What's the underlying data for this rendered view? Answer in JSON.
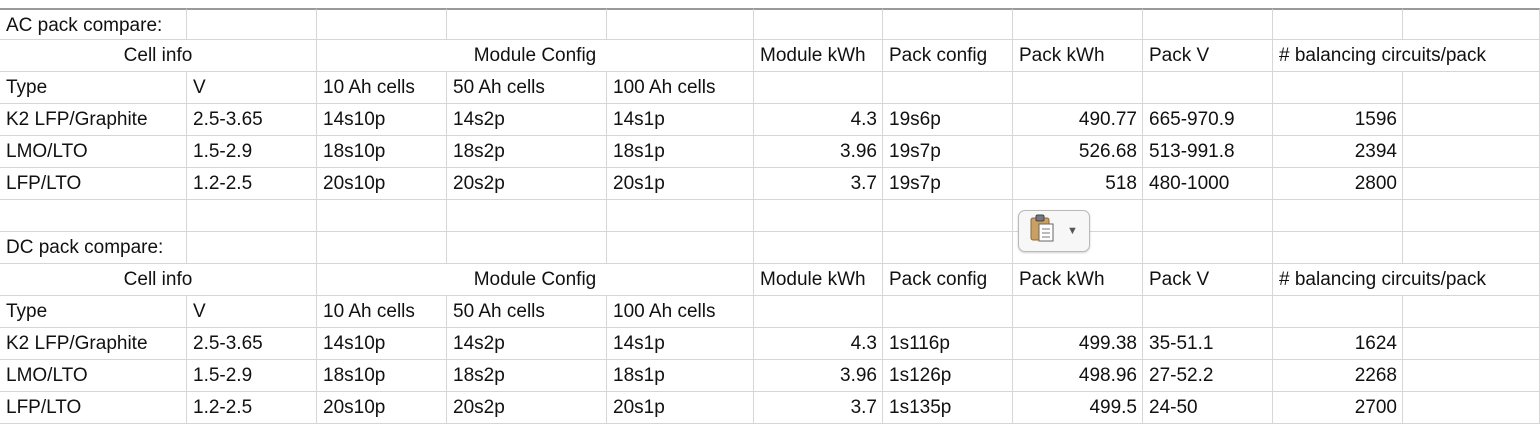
{
  "sections": [
    {
      "title": "AC pack compare:",
      "group_headers": [
        "Cell info",
        "Module Config",
        "Module kWh",
        "Pack config",
        "Pack kWh",
        "Pack V",
        "# balancing circuits/pack"
      ],
      "subheaders": [
        "Type",
        "V",
        "10 Ah cells",
        "50 Ah cells",
        "100 Ah cells"
      ],
      "rows": [
        [
          "K2 LFP/Graphite",
          "2.5-3.65",
          "14s10p",
          "14s2p",
          "14s1p",
          "4.3",
          "19s6p",
          "490.77",
          "665-970.9",
          "1596"
        ],
        [
          "LMO/LTO",
          "1.5-2.9",
          "18s10p",
          "18s2p",
          "18s1p",
          "3.96",
          "19s7p",
          "526.68",
          "513-991.8",
          "2394"
        ],
        [
          "LFP/LTO",
          "1.2-2.5",
          "20s10p",
          "20s2p",
          "20s1p",
          "3.7",
          "19s7p",
          "518",
          "480-1000",
          "2800"
        ]
      ]
    },
    {
      "title": "DC pack compare:",
      "group_headers": [
        "Cell info",
        "Module Config",
        "Module kWh",
        "Pack config",
        "Pack kWh",
        "Pack V",
        "# balancing circuits/pack"
      ],
      "subheaders": [
        "Type",
        "V",
        "10 Ah cells",
        "50 Ah cells",
        "100 Ah cells"
      ],
      "rows": [
        [
          "K2 LFP/Graphite",
          "2.5-3.65",
          "14s10p",
          "14s2p",
          "14s1p",
          "4.3",
          "1s116p",
          "499.38",
          "35-51.1",
          "1624"
        ],
        [
          "LMO/LTO",
          "1.5-2.9",
          "18s10p",
          "18s2p",
          "18s1p",
          "3.96",
          "1s126p",
          "498.96",
          "27-52.2",
          "2268"
        ],
        [
          "LFP/LTO",
          "1.2-2.5",
          "20s10p",
          "20s2p",
          "20s1p",
          "3.7",
          "1s135p",
          "499.5",
          "24-50",
          "2700"
        ]
      ]
    }
  ],
  "paste_button": {
    "icon": "clipboard-icon",
    "menu_icon": "chevron-down-icon"
  }
}
